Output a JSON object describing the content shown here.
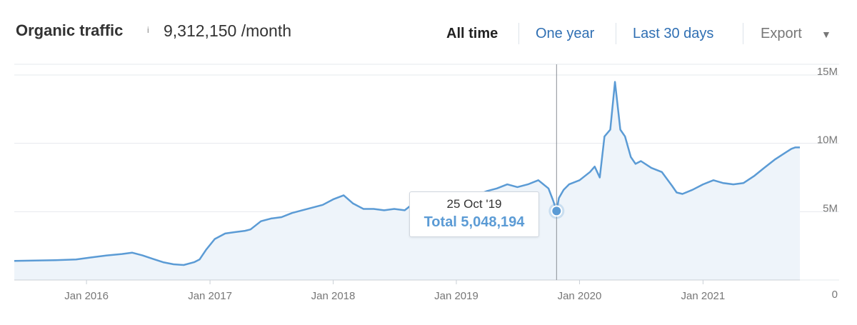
{
  "header": {
    "title": "Organic traffic",
    "info_glyph": "i",
    "metric_value": "9,312,150 /month",
    "ranges": [
      "All time",
      "One year",
      "Last 30 days"
    ],
    "active_range": "All time",
    "export_label": "Export",
    "export_caret": "▼"
  },
  "tooltip": {
    "date": "25 Oct '19",
    "total": "Total 5,048,194"
  },
  "colors": {
    "line": "#5b9bd5",
    "fill": "#eef4fa",
    "grid": "#e6e9ee",
    "link": "#2f6fb3"
  },
  "chart_data": {
    "type": "area",
    "title": "Organic traffic",
    "ylabel": "",
    "xlabel": "",
    "x_tick_labels": [
      "Jan 2016",
      "Jan 2017",
      "Jan 2018",
      "Jan 2019",
      "Jan 2020",
      "Jan 2021"
    ],
    "y_tick_labels": [
      "0",
      "5M",
      "10M",
      "15M"
    ],
    "ylim": [
      0,
      15000000
    ],
    "xlim": [
      "2015-06-01",
      "2021-10-15"
    ],
    "grid": true,
    "crosshair_date": "2019-10-25",
    "series": [
      {
        "x": [
          "2015-06-01",
          "2015-08-01",
          "2015-10-01",
          "2015-12-01",
          "2016-01-15",
          "2016-03-01",
          "2016-04-15",
          "2016-05-15",
          "2016-06-15",
          "2016-07-15",
          "2016-08-15",
          "2016-09-15",
          "2016-10-15",
          "2016-11-15",
          "2016-12-01",
          "2016-12-20",
          "2017-01-15",
          "2017-02-15",
          "2017-03-15",
          "2017-04-15",
          "2017-05-01",
          "2017-06-01",
          "2017-07-01",
          "2017-08-01",
          "2017-09-01",
          "2017-10-01",
          "2017-11-01",
          "2017-12-01",
          "2018-01-01",
          "2018-02-01",
          "2018-03-01",
          "2018-04-01",
          "2018-05-01",
          "2018-06-01",
          "2018-07-01",
          "2018-08-01",
          "2018-09-01",
          "2018-10-01",
          "2018-11-01",
          "2018-12-01",
          "2019-01-01",
          "2019-02-01",
          "2019-03-01",
          "2019-04-01",
          "2019-05-01",
          "2019-06-01",
          "2019-07-01",
          "2019-08-01",
          "2019-09-01",
          "2019-10-01",
          "2019-10-15",
          "2019-10-25",
          "2019-11-01",
          "2019-11-15",
          "2019-12-01",
          "2020-01-01",
          "2020-02-01",
          "2020-02-15",
          "2020-03-01",
          "2020-03-15",
          "2020-04-01",
          "2020-04-15",
          "2020-05-01",
          "2020-05-15",
          "2020-06-01",
          "2020-06-15",
          "2020-07-01",
          "2020-08-01",
          "2020-09-01",
          "2020-10-01",
          "2020-10-15",
          "2020-11-01",
          "2020-12-01",
          "2021-01-01",
          "2021-02-01",
          "2021-03-01",
          "2021-04-01",
          "2021-05-01",
          "2021-06-01",
          "2021-07-01",
          "2021-08-01",
          "2021-09-01",
          "2021-09-20",
          "2021-10-01",
          "2021-10-15"
        ],
        "values": [
          1400000,
          1420000,
          1450000,
          1500000,
          1650000,
          1800000,
          1900000,
          2000000,
          1800000,
          1550000,
          1300000,
          1150000,
          1100000,
          1300000,
          1500000,
          2200000,
          3000000,
          3400000,
          3500000,
          3600000,
          3700000,
          4300000,
          4500000,
          4600000,
          4900000,
          5100000,
          5300000,
          5500000,
          5900000,
          6200000,
          5600000,
          5200000,
          5200000,
          5100000,
          5200000,
          5100000,
          5700000,
          5500000,
          5800000,
          6000000,
          6100000,
          6200000,
          6200000,
          6500000,
          6700000,
          7000000,
          6800000,
          7000000,
          7300000,
          6700000,
          5800000,
          5048194,
          6000000,
          6600000,
          7000000,
          7300000,
          7900000,
          8300000,
          7500000,
          10500000,
          11000000,
          14500000,
          11000000,
          10500000,
          9000000,
          8500000,
          8700000,
          8200000,
          7900000,
          6900000,
          6400000,
          6300000,
          6600000,
          7000000,
          7300000,
          7100000,
          7000000,
          7100000,
          7600000,
          8200000,
          8800000,
          9300000,
          9600000,
          9700000,
          9700000
        ]
      }
    ]
  }
}
